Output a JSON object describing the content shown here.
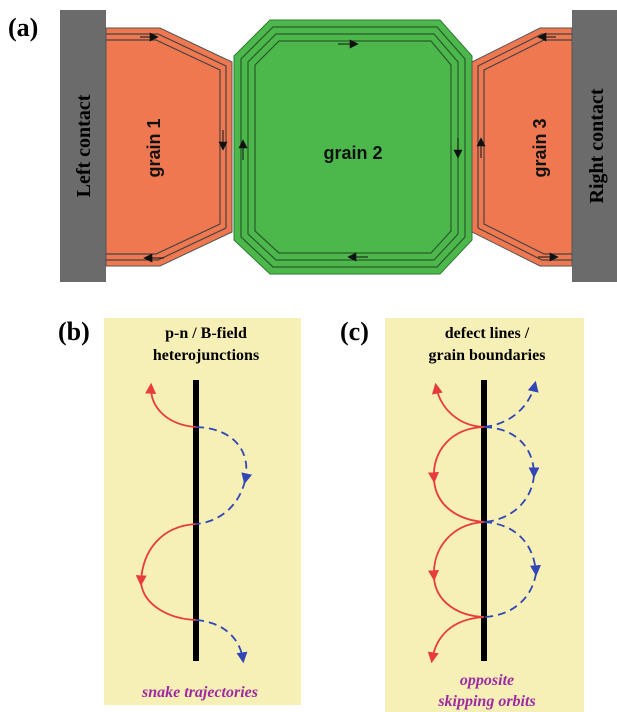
{
  "panel_a": {
    "label": "(a)",
    "left_contact": "Left contact",
    "right_contact": "Right contact",
    "grain1": "grain 1",
    "grain2": "grain 2",
    "grain3": "grain 3"
  },
  "panel_b": {
    "label": "(b)",
    "title_line1": "p-n / B-field",
    "title_line2": "heterojunctions",
    "caption": "snake trajectories"
  },
  "panel_c": {
    "label": "(c)",
    "title_line1": "defect lines /",
    "title_line2": "grain boundaries",
    "caption_line1": "opposite",
    "caption_line2": "skipping orbits"
  },
  "colors": {
    "contact": "#6b6b6b",
    "grain_side": "#f07850",
    "grain_center": "#4cb84c",
    "box_fill": "#f7f0b6",
    "red_path": "#e83b3b",
    "blue_path": "#2f45b8",
    "caption": "#a02aa0"
  }
}
